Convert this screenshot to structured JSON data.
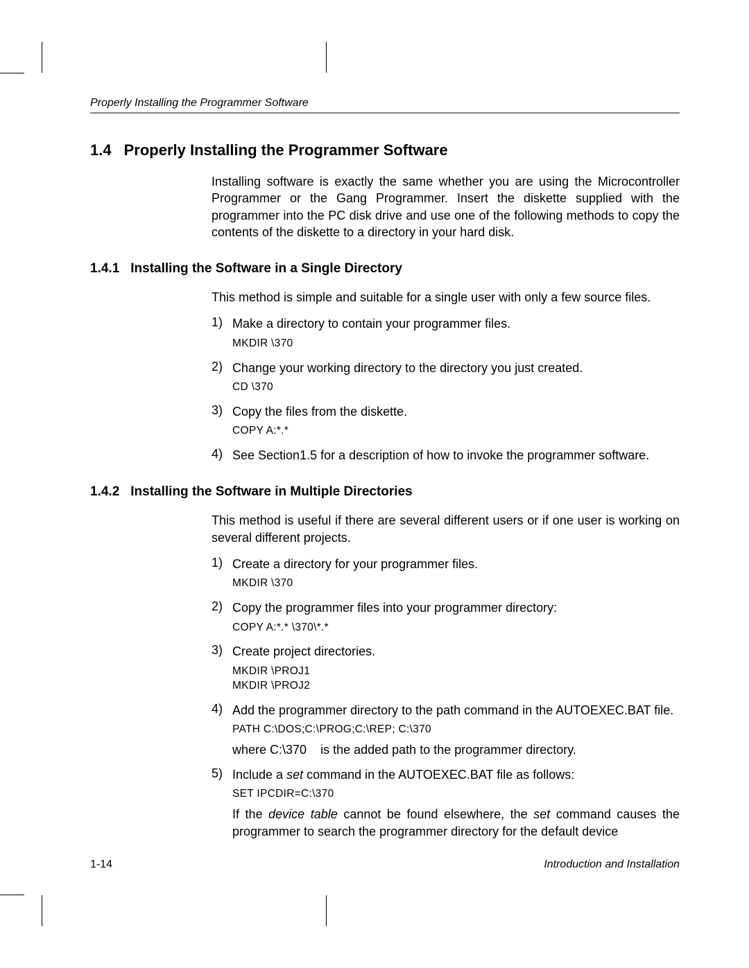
{
  "running_header": "Properly Installing the Programmer Software",
  "section": {
    "number": "1.4",
    "title": "Properly Installing the Programmer Software",
    "intro": "Installing software is exactly the same whether you are using the Microcontroller Programmer or the Gang Programmer. Insert the diskette supplied with the programmer into the PC disk drive and use one of the following methods to copy the contents of the diskette to a directory in your hard disk."
  },
  "sub1": {
    "number": "1.4.1",
    "title": "Installing the Software in a Single Directory",
    "intro": "This method is simple and suitable for a single user with only a few source files.",
    "steps": {
      "s1": {
        "n": "1)",
        "text": "Make  a directory to contain your programmer files.",
        "cmd": "MKDIR \\370"
      },
      "s2": {
        "n": "2)",
        "text": "Change your working directory to the directory you just created.",
        "cmd": "CD  \\370"
      },
      "s3": {
        "n": "3)",
        "text": "Copy the files from the diskette.",
        "cmd": "COPY  A:*.*"
      },
      "s4": {
        "n": "4)",
        "text": "See Section1.5 for a description of how to invoke the programmer software."
      }
    }
  },
  "sub2": {
    "number": "1.4.2",
    "title": "Installing the Software in Multiple Directories",
    "intro": "This method is useful if there are several different users or if one user is working on several different projects.",
    "steps": {
      "s1": {
        "n": "1)",
        "text": "Create a directory for your programmer files.",
        "cmd": "MKDIR  \\370"
      },
      "s2": {
        "n": "2)",
        "text": "Copy the programmer files into your programmer directory:",
        "cmd": "COPY  A:*.*  \\370\\*.*"
      },
      "s3": {
        "n": "3)",
        "text": "Create project directories.",
        "cmd1": "MKDIR  \\PROJ1",
        "cmd2": "MKDIR  \\PROJ2"
      },
      "s4": {
        "n": "4)",
        "text": "Add the programmer directory to the path command in the AUTOEXEC.BAT file.",
        "cmd": "PATH C:\\DOS;C:\\PROG;C:\\REP;     C:\\370",
        "note_a": "where C:\\370",
        "note_b": "is the added path to the programmer directory."
      },
      "s5": {
        "n": "5)",
        "pre": "Include a ",
        "it1": "set",
        "post": " command in the AUTOEXEC.BAT file as follows:",
        "cmd": "SET  IPCDIR=C:\\370",
        "n2a": "If the ",
        "n2it1": "device table",
        "n2b": " cannot be found elsewhere, the ",
        "n2it2": "set",
        "n2c": " command causes the programmer to search the programmer directory for the default device"
      }
    }
  },
  "footer": {
    "page": "1-14",
    "chapter": "Introduction and Installation"
  }
}
